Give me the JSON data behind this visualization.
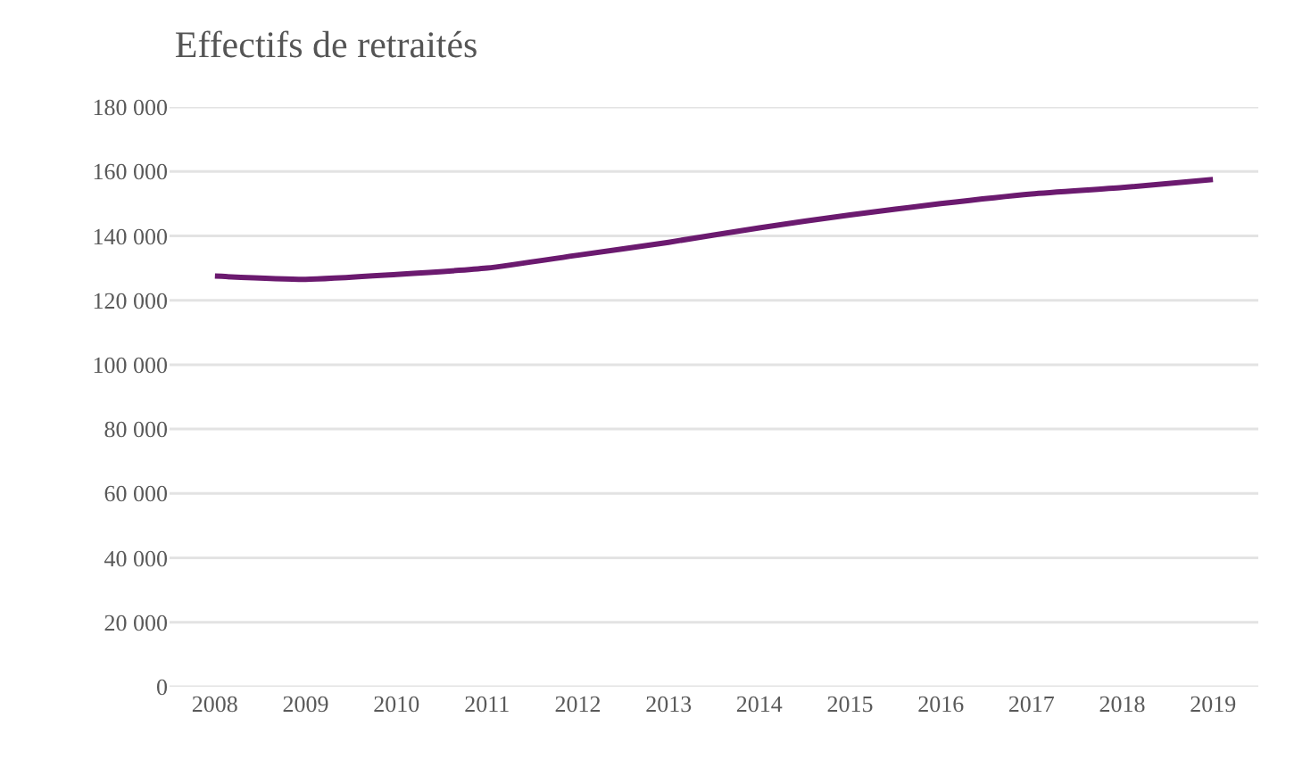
{
  "chart_data": {
    "type": "line",
    "title": "Effectifs de retraités",
    "categories": [
      "2008",
      "2009",
      "2010",
      "2011",
      "2012",
      "2013",
      "2014",
      "2015",
      "2016",
      "2017",
      "2018",
      "2019"
    ],
    "series": [
      {
        "color": "#6b1a6f",
        "values": [
          127500,
          126500,
          128000,
          130000,
          134000,
          138000,
          142500,
          146500,
          150000,
          153000,
          155000,
          157500
        ]
      }
    ],
    "ylim": [
      0,
      180000
    ],
    "yticks": [
      {
        "value": 0,
        "label": "0"
      },
      {
        "value": 20000,
        "label": "20 000"
      },
      {
        "value": 40000,
        "label": "40 000"
      },
      {
        "value": 60000,
        "label": "60 000"
      },
      {
        "value": 80000,
        "label": "80 000"
      },
      {
        "value": 100000,
        "label": "100 000"
      },
      {
        "value": 120000,
        "label": "120 000"
      },
      {
        "value": 140000,
        "label": "140 000"
      },
      {
        "value": 160000,
        "label": "160 000"
      },
      {
        "value": 180000,
        "label": "180 000"
      }
    ],
    "grid": "y",
    "marker": "none",
    "line_style": "solid"
  }
}
